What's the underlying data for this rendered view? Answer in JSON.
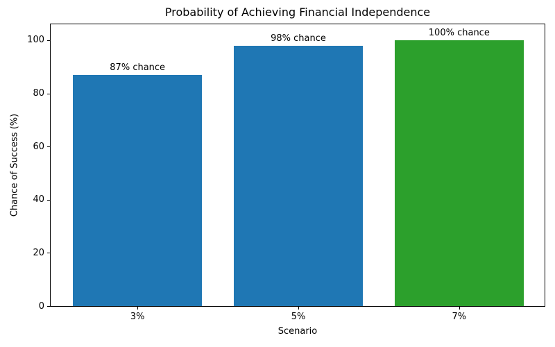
{
  "chart_data": {
    "type": "bar",
    "title": "Probability of Achieving Financial Independence",
    "xlabel": "Scenario",
    "ylabel": "Chance of Success (%)",
    "categories": [
      "3%",
      "5%",
      "7%"
    ],
    "values": [
      87,
      98,
      100
    ],
    "bar_labels": [
      "87% chance",
      "98% chance",
      "100% chance"
    ],
    "bar_colors": [
      "#1f77b4",
      "#1f77b4",
      "#2ca02c"
    ],
    "yticks": [
      0,
      20,
      40,
      60,
      80,
      100
    ],
    "ylim": [
      0,
      106
    ],
    "grid": false,
    "legend": null,
    "background_color": "#ffffff",
    "text_color": "#000000"
  }
}
